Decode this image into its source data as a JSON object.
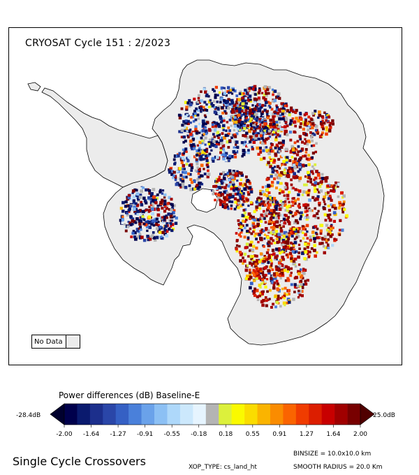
{
  "map": {
    "title": "CRYOSAT Cycle 151 : 2/2023",
    "no_data_label": "No Data",
    "no_data_color": "#ececec",
    "land_color": "#ececec",
    "coast_color": "#000000"
  },
  "colorbar": {
    "title": "Power differences (dB) Baseline-E",
    "min_label": "-28.4dB",
    "max_label": "25.0dB",
    "tick_labels": [
      "-2.00",
      "-1.64",
      "-1.27",
      "-0.91",
      "-0.55",
      "-0.18",
      "0.18",
      "0.55",
      "0.91",
      "1.27",
      "1.64",
      "2.00"
    ],
    "colors": [
      "#00004c",
      "#0a1a6e",
      "#1c2f8c",
      "#2a46a8",
      "#3560c4",
      "#4a80da",
      "#6aa2ea",
      "#8cc0f4",
      "#aed8fa",
      "#cce8fc",
      "#e6f4fe",
      "#b4b4b4",
      "#dcf03c",
      "#fafa00",
      "#fadc00",
      "#fab400",
      "#fa8c00",
      "#fa6400",
      "#f03c00",
      "#dc1e00",
      "#c80000",
      "#a00000",
      "#780000"
    ],
    "low_arrow_color": "#00002e",
    "high_arrow_color": "#500000"
  },
  "footer": {
    "title": "Single Cycle Crossovers",
    "binsize": "BINSIZE = 10.0x10.0 km",
    "xop_type": "XOP_TYPE: cs_land_ht",
    "smooth_radius": "SMOOTH RADIUS =  20.0 Km"
  }
}
